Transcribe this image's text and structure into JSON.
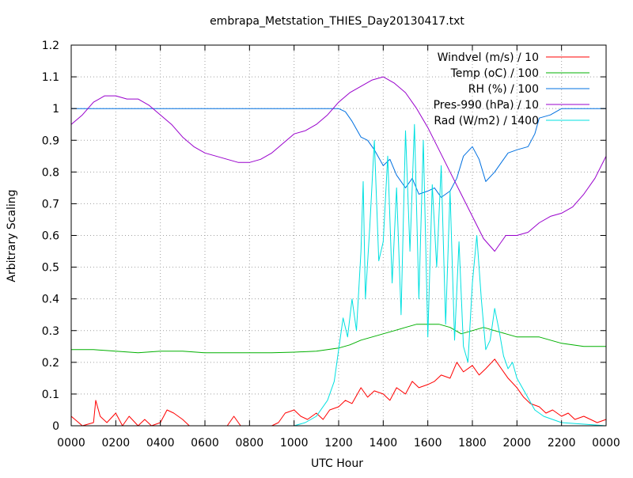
{
  "chart_data": {
    "type": "line",
    "title": "embrapa_Metstation_THIES_Day20130417.txt",
    "xlabel": "UTC Hour",
    "ylabel": "Arbitrary Scaling",
    "xlim": [
      0,
      24
    ],
    "ylim": [
      0,
      1.2
    ],
    "grid": true,
    "legend_position": "top-right",
    "x_ticks": [
      {
        "value": 0,
        "label": "0000"
      },
      {
        "value": 2,
        "label": "0200"
      },
      {
        "value": 4,
        "label": "0400"
      },
      {
        "value": 6,
        "label": "0600"
      },
      {
        "value": 8,
        "label": "0800"
      },
      {
        "value": 10,
        "label": "1000"
      },
      {
        "value": 12,
        "label": "1200"
      },
      {
        "value": 14,
        "label": "1400"
      },
      {
        "value": 16,
        "label": "1600"
      },
      {
        "value": 18,
        "label": "1800"
      },
      {
        "value": 20,
        "label": "2000"
      },
      {
        "value": 22,
        "label": "2200"
      },
      {
        "value": 24,
        "label": "0000"
      }
    ],
    "y_ticks": [
      {
        "value": 0,
        "label": "0"
      },
      {
        "value": 0.1,
        "label": "0.1"
      },
      {
        "value": 0.2,
        "label": "0.2"
      },
      {
        "value": 0.3,
        "label": "0.3"
      },
      {
        "value": 0.4,
        "label": "0.4"
      },
      {
        "value": 0.5,
        "label": "0.5"
      },
      {
        "value": 0.6,
        "label": "0.6"
      },
      {
        "value": 0.7,
        "label": "0.7"
      },
      {
        "value": 0.8,
        "label": "0.8"
      },
      {
        "value": 0.9,
        "label": "0.9"
      },
      {
        "value": 1.0,
        "label": "1"
      },
      {
        "value": 1.1,
        "label": "1.1"
      },
      {
        "value": 1.2,
        "label": "1.2"
      }
    ],
    "series": [
      {
        "name": "Windvel (m/s) / 10",
        "color": "#ff0000",
        "x": [
          0,
          0.5,
          1.0,
          1.1,
          1.3,
          1.6,
          2.0,
          2.3,
          2.6,
          3.0,
          3.3,
          3.6,
          4.0,
          4.3,
          4.6,
          5.0,
          5.3,
          5.6,
          6.0,
          6.5,
          7.0,
          7.3,
          7.6,
          8.0,
          8.5,
          9.0,
          9.3,
          9.6,
          10.0,
          10.3,
          10.6,
          11.0,
          11.3,
          11.6,
          12.0,
          12.3,
          12.6,
          13.0,
          13.3,
          13.6,
          14.0,
          14.3,
          14.6,
          15.0,
          15.3,
          15.6,
          16.0,
          16.3,
          16.6,
          17.0,
          17.3,
          17.6,
          18.0,
          18.3,
          18.6,
          19.0,
          19.3,
          19.6,
          20.0,
          20.3,
          20.6,
          21.0,
          21.3,
          21.6,
          22.0,
          22.3,
          22.6,
          23.0,
          23.3,
          23.6,
          24.0
        ],
        "y": [
          0.03,
          0.0,
          0.01,
          0.08,
          0.03,
          0.01,
          0.04,
          0.0,
          0.03,
          0.0,
          0.02,
          0.0,
          0.01,
          0.05,
          0.04,
          0.02,
          0.0,
          0.0,
          0.0,
          0.0,
          0.0,
          0.03,
          0.0,
          0.0,
          0.0,
          0.0,
          0.01,
          0.04,
          0.05,
          0.03,
          0.02,
          0.04,
          0.02,
          0.05,
          0.06,
          0.08,
          0.07,
          0.12,
          0.09,
          0.11,
          0.1,
          0.08,
          0.12,
          0.1,
          0.14,
          0.12,
          0.13,
          0.14,
          0.16,
          0.15,
          0.2,
          0.17,
          0.19,
          0.16,
          0.18,
          0.21,
          0.18,
          0.15,
          0.12,
          0.09,
          0.07,
          0.06,
          0.04,
          0.05,
          0.03,
          0.04,
          0.02,
          0.03,
          0.02,
          0.01,
          0.02
        ]
      },
      {
        "name": "Temp (oC) / 100",
        "color": "#00b000",
        "x": [
          0,
          1,
          2,
          3,
          4,
          5,
          6,
          7,
          8,
          9,
          10,
          11,
          11.5,
          12,
          12.5,
          13,
          13.5,
          14,
          14.5,
          15,
          15.5,
          16,
          16.5,
          17,
          17.5,
          18,
          18.5,
          19,
          19.5,
          20,
          20.5,
          21,
          21.5,
          22,
          23,
          24
        ],
        "y": [
          0.24,
          0.24,
          0.235,
          0.23,
          0.235,
          0.235,
          0.23,
          0.23,
          0.23,
          0.23,
          0.232,
          0.235,
          0.24,
          0.245,
          0.255,
          0.27,
          0.28,
          0.29,
          0.3,
          0.31,
          0.32,
          0.32,
          0.32,
          0.31,
          0.29,
          0.3,
          0.31,
          0.3,
          0.29,
          0.28,
          0.28,
          0.28,
          0.27,
          0.26,
          0.25,
          0.25
        ]
      },
      {
        "name": "RH (%) / 100",
        "color": "#0070e0",
        "x": [
          0,
          2,
          4,
          6,
          8,
          10,
          12,
          12.3,
          12.6,
          13.0,
          13.3,
          13.6,
          14.0,
          14.3,
          14.6,
          15.0,
          15.3,
          15.6,
          16.0,
          16.3,
          16.6,
          17.0,
          17.3,
          17.6,
          18.0,
          18.3,
          18.6,
          19.0,
          19.3,
          19.6,
          20.0,
          20.5,
          20.8,
          21.0,
          21.5,
          22.0,
          23.0,
          24.0
        ],
        "y": [
          1.0,
          1.0,
          1.0,
          1.0,
          1.0,
          1.0,
          1.0,
          0.99,
          0.96,
          0.91,
          0.9,
          0.87,
          0.82,
          0.84,
          0.79,
          0.75,
          0.78,
          0.73,
          0.74,
          0.75,
          0.72,
          0.74,
          0.78,
          0.85,
          0.88,
          0.84,
          0.77,
          0.8,
          0.83,
          0.86,
          0.87,
          0.88,
          0.92,
          0.97,
          0.98,
          1.0,
          1.0,
          1.0
        ]
      },
      {
        "name": "Pres-990 (hPa) / 10",
        "color": "#9900cc",
        "x": [
          0,
          0.5,
          1.0,
          1.5,
          2.0,
          2.5,
          3.0,
          3.5,
          4.0,
          4.5,
          5.0,
          5.5,
          6.0,
          6.5,
          7.0,
          7.5,
          8.0,
          8.5,
          9.0,
          9.5,
          10.0,
          10.5,
          11.0,
          11.5,
          12.0,
          12.5,
          13.0,
          13.5,
          14.0,
          14.5,
          15.0,
          15.5,
          16.0,
          16.5,
          17.0,
          17.5,
          18.0,
          18.5,
          19.0,
          19.5,
          20.0,
          20.5,
          21.0,
          21.5,
          22.0,
          22.5,
          23.0,
          23.5,
          24.0
        ],
        "y": [
          0.95,
          0.98,
          1.02,
          1.04,
          1.04,
          1.03,
          1.03,
          1.01,
          0.98,
          0.95,
          0.91,
          0.88,
          0.86,
          0.85,
          0.84,
          0.83,
          0.83,
          0.84,
          0.86,
          0.89,
          0.92,
          0.93,
          0.95,
          0.98,
          1.02,
          1.05,
          1.07,
          1.09,
          1.1,
          1.08,
          1.05,
          1.0,
          0.94,
          0.87,
          0.8,
          0.73,
          0.66,
          0.59,
          0.55,
          0.6,
          0.6,
          0.61,
          0.64,
          0.66,
          0.67,
          0.69,
          0.73,
          0.78,
          0.85
        ]
      },
      {
        "name": "Rad (W/m2) / 1400",
        "color": "#00e0e0",
        "x": [
          0,
          6,
          10,
          10.5,
          11.0,
          11.5,
          11.8,
          12.0,
          12.2,
          12.4,
          12.6,
          12.8,
          13.0,
          13.1,
          13.2,
          13.4,
          13.6,
          13.8,
          14.0,
          14.2,
          14.4,
          14.6,
          14.8,
          15.0,
          15.2,
          15.4,
          15.6,
          15.8,
          16.0,
          16.2,
          16.4,
          16.6,
          16.8,
          17.0,
          17.2,
          17.4,
          17.6,
          17.8,
          18.0,
          18.2,
          18.4,
          18.6,
          18.8,
          19.0,
          19.2,
          19.4,
          19.6,
          19.8,
          20.0,
          20.4,
          20.8,
          21.2,
          21.6,
          22.0,
          24.0
        ],
        "y": [
          0.0,
          0.0,
          0.0,
          0.01,
          0.03,
          0.08,
          0.14,
          0.24,
          0.34,
          0.28,
          0.4,
          0.3,
          0.55,
          0.77,
          0.4,
          0.63,
          0.9,
          0.52,
          0.58,
          0.85,
          0.45,
          0.75,
          0.35,
          0.93,
          0.55,
          0.95,
          0.4,
          0.9,
          0.28,
          0.76,
          0.5,
          0.82,
          0.32,
          0.74,
          0.27,
          0.58,
          0.25,
          0.2,
          0.45,
          0.6,
          0.4,
          0.24,
          0.27,
          0.37,
          0.3,
          0.22,
          0.18,
          0.2,
          0.15,
          0.1,
          0.05,
          0.03,
          0.02,
          0.01,
          0.0
        ]
      }
    ]
  },
  "style": {
    "background": "#ffffff",
    "grid_color": "#a0a0a0",
    "axis_color": "#000000"
  }
}
